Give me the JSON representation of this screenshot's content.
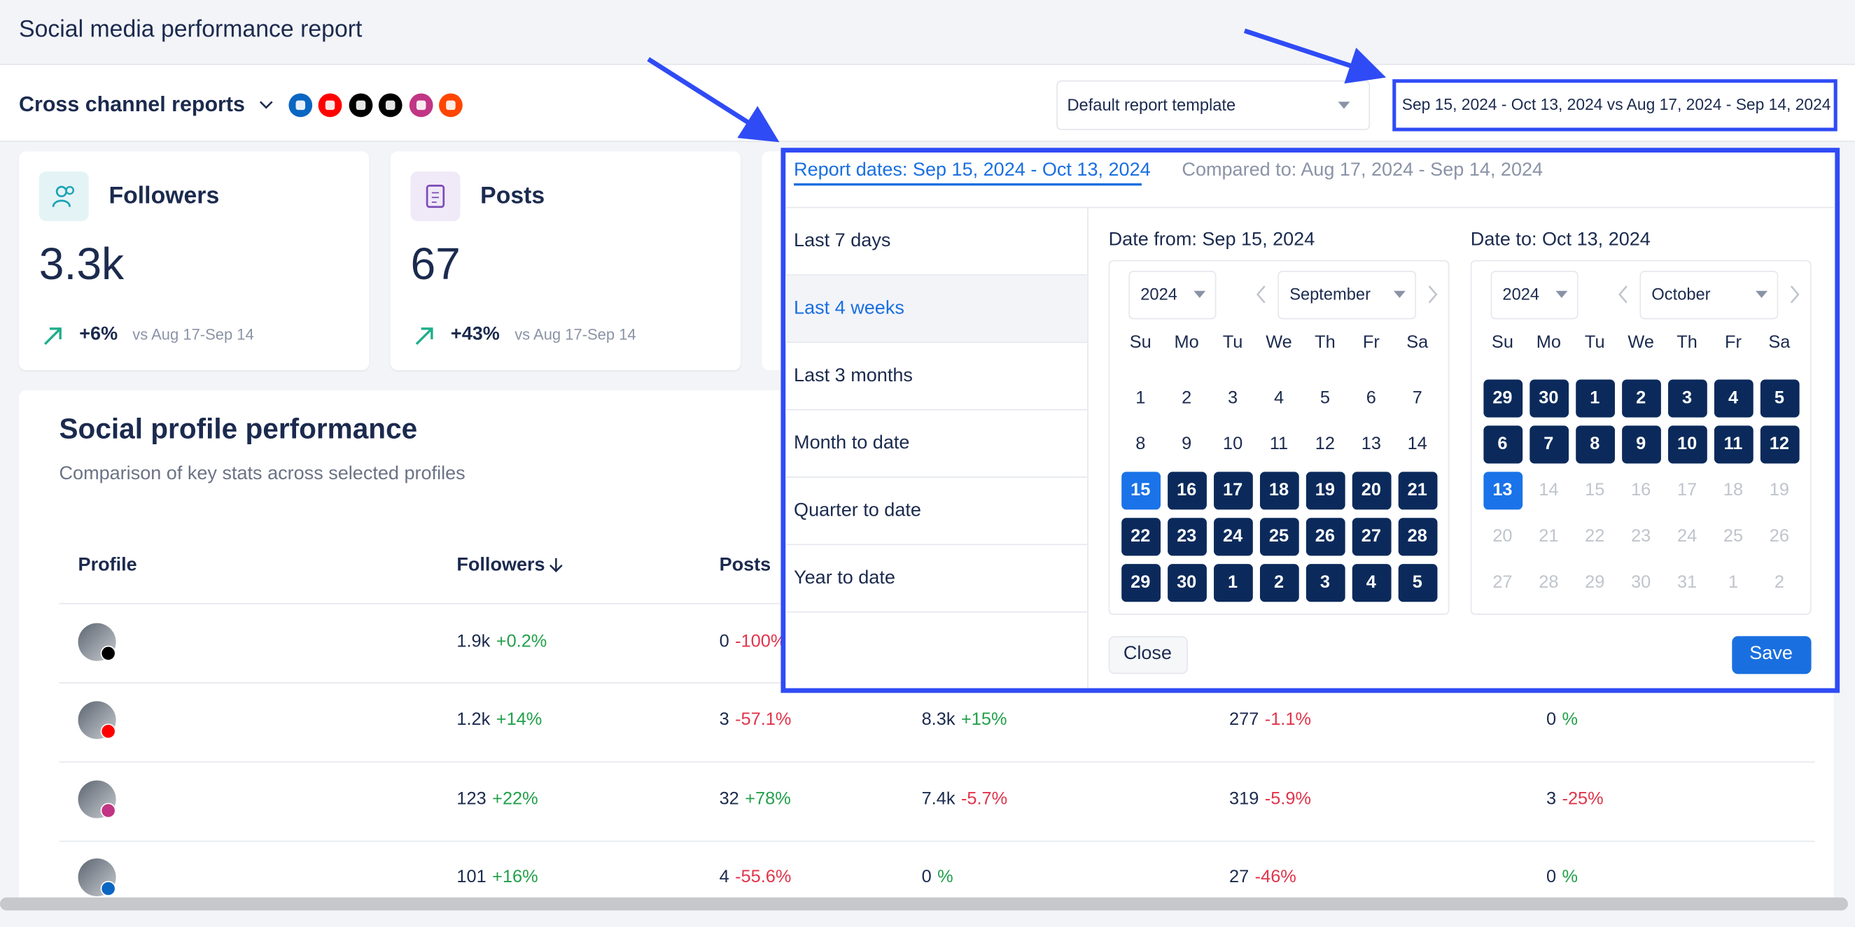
{
  "header": {
    "title": "Social media performance report"
  },
  "toolbar": {
    "report_name": "Cross channel reports",
    "template": "Default report template",
    "date_range": "Sep 15, 2024 - Oct 13, 2024 vs Aug 17, 2024 - Sep 14, 2024"
  },
  "cards": [
    {
      "title": "Followers",
      "value": "3.3k",
      "change": "+6%",
      "comparison": "vs Aug 17-Sep 14"
    },
    {
      "title": "Posts",
      "value": "67",
      "change": "+43%",
      "comparison": "vs Aug 17-Sep 14"
    }
  ],
  "table": {
    "title": "Social profile performance",
    "subtitle": "Comparison of key stats across selected profiles",
    "columns": [
      "Profile",
      "Followers",
      "Posts"
    ],
    "rows": [
      {
        "network": "tiktok",
        "cells": [
          [
            "1.9k",
            "+0.2%"
          ],
          [
            "0",
            "-100%"
          ]
        ]
      },
      {
        "network": "youtube",
        "cells": [
          [
            "1.2k",
            "+14%"
          ],
          [
            "3",
            "-57.1%"
          ],
          [
            "8.3k",
            "+15%"
          ],
          [
            "277",
            "-1.1%"
          ],
          [
            "0",
            "%"
          ]
        ]
      },
      {
        "network": "instagram",
        "cells": [
          [
            "123",
            "+22%"
          ],
          [
            "32",
            "+78%"
          ],
          [
            "7.4k",
            "-5.7%"
          ],
          [
            "319",
            "-5.9%"
          ],
          [
            "3",
            "-25%"
          ]
        ]
      },
      {
        "network": "linkedin",
        "cells": [
          [
            "101",
            "+16%"
          ],
          [
            "4",
            "-55.6%"
          ],
          [
            "0",
            "%"
          ],
          [
            "27",
            "-46%"
          ],
          [
            "0",
            "%"
          ]
        ]
      }
    ]
  },
  "date_picker": {
    "tabs": [
      "Report dates: Sep 15, 2024 - Oct 13, 2024",
      "Compared to: Aug 17, 2024 - Sep 14, 2024"
    ],
    "active_tab": 0,
    "presets": [
      "Last 7 days",
      "Last 4 weeks",
      "Last 3 months",
      "Month to date",
      "Quarter to date",
      "Year to date"
    ],
    "active_preset": 1,
    "weekdays": [
      "Su",
      "Mo",
      "Tu",
      "We",
      "Th",
      "Fr",
      "Sa"
    ],
    "calendars": [
      {
        "label": "Date from: Sep 15, 2024",
        "year": "2024",
        "month": "September",
        "days": [
          [
            1,
            2,
            3,
            4,
            5,
            6,
            7
          ],
          [
            8,
            9,
            10,
            11,
            12,
            13,
            14
          ],
          [
            15,
            16,
            17,
            18,
            19,
            20,
            21
          ],
          [
            22,
            23,
            24,
            25,
            26,
            27,
            28
          ],
          [
            29,
            30,
            1,
            2,
            3,
            4,
            5
          ]
        ],
        "states": [
          "nnnnnnn",
          "nnnnnnn",
          "eiiiiii",
          "iiiiiii",
          "iiiiiii"
        ]
      },
      {
        "label": "Date to: Oct 13, 2024",
        "year": "2024",
        "month": "October",
        "days": [
          [
            29,
            30,
            1,
            2,
            3,
            4,
            5
          ],
          [
            6,
            7,
            8,
            9,
            10,
            11,
            12
          ],
          [
            13,
            14,
            15,
            16,
            17,
            18,
            19
          ],
          [
            20,
            21,
            22,
            23,
            24,
            25,
            26
          ],
          [
            27,
            28,
            29,
            30,
            31,
            1,
            2
          ]
        ],
        "states": [
          "iiiiiii",
          "iiiiiii",
          "eoooooo",
          "ooooooo",
          "ooooooo"
        ]
      }
    ],
    "buttons": {
      "close": "Close",
      "save": "Save"
    }
  }
}
